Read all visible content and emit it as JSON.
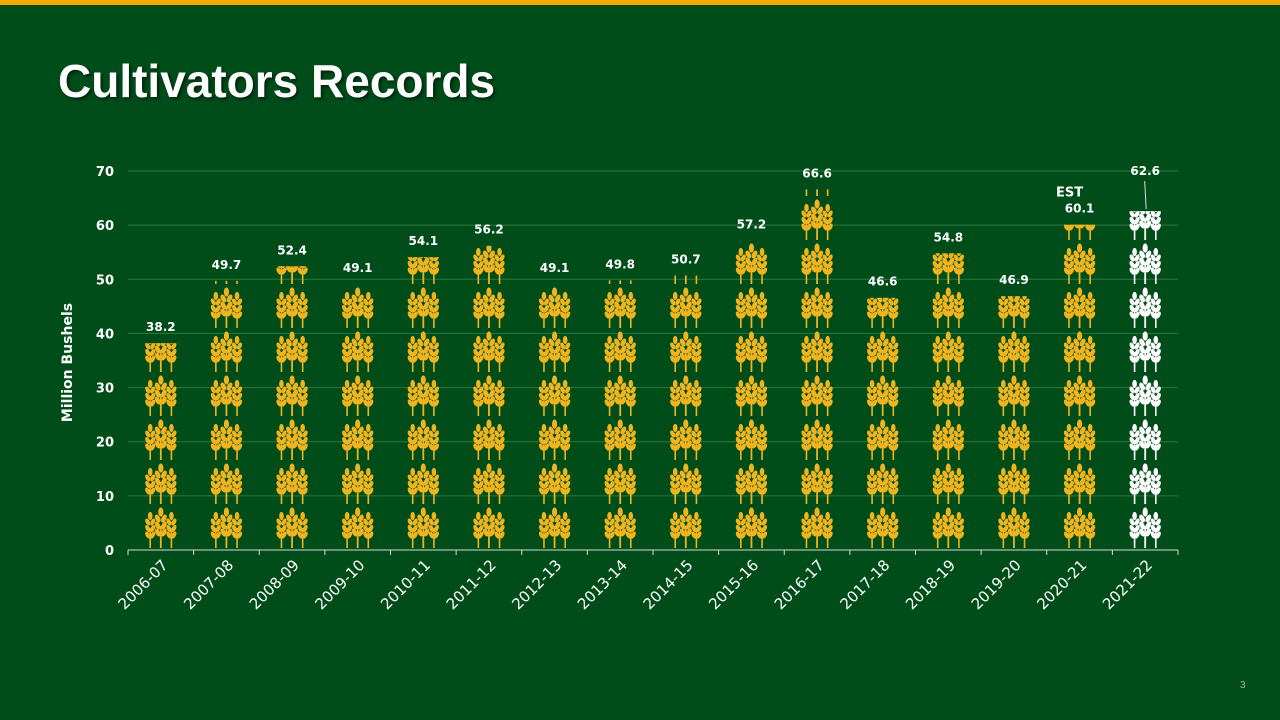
{
  "slide": {
    "title": "Cultivators Records",
    "page_number": "3"
  },
  "colors": {
    "background": "#004d1a",
    "top_bar": "#f5a800",
    "bar_gold": "#f0b41e",
    "bar_white": "#ffffff",
    "gridline": "#2c7a3e",
    "axis": "#d9d9d9"
  },
  "icons": {
    "bar_fill": "wheat-icon"
  },
  "chart_data": {
    "type": "bar",
    "title": "",
    "xlabel": "",
    "ylabel": "Million Bushels",
    "ylim": [
      0,
      70
    ],
    "yticks": [
      0,
      10,
      20,
      30,
      40,
      50,
      60,
      70
    ],
    "grid": true,
    "legend": "none",
    "categories": [
      "2006-07",
      "2007-08",
      "2008-09",
      "2009-10",
      "2010-11",
      "2011-12",
      "2012-13",
      "2013-14",
      "2014-15",
      "2015-16",
      "2016-17",
      "2017-18",
      "2018-19",
      "2019-20",
      "2020-21",
      "2021-22"
    ],
    "values": [
      38.2,
      49.7,
      52.4,
      49.1,
      54.1,
      56.2,
      49.1,
      49.8,
      50.7,
      57.2,
      66.6,
      46.6,
      54.8,
      46.9,
      60.1,
      62.6
    ],
    "data_labels": [
      "38.2",
      "49.7",
      "52.4",
      "49.1",
      "54.1",
      "56.2",
      "49.1",
      "49.8",
      "50.7",
      "57.2",
      "66.6",
      "46.6",
      "54.8",
      "46.9",
      "60.1",
      "62.6"
    ],
    "highlight_category": "2021-22",
    "annotations": [
      {
        "category": "2020-21",
        "text": "EST"
      }
    ]
  }
}
